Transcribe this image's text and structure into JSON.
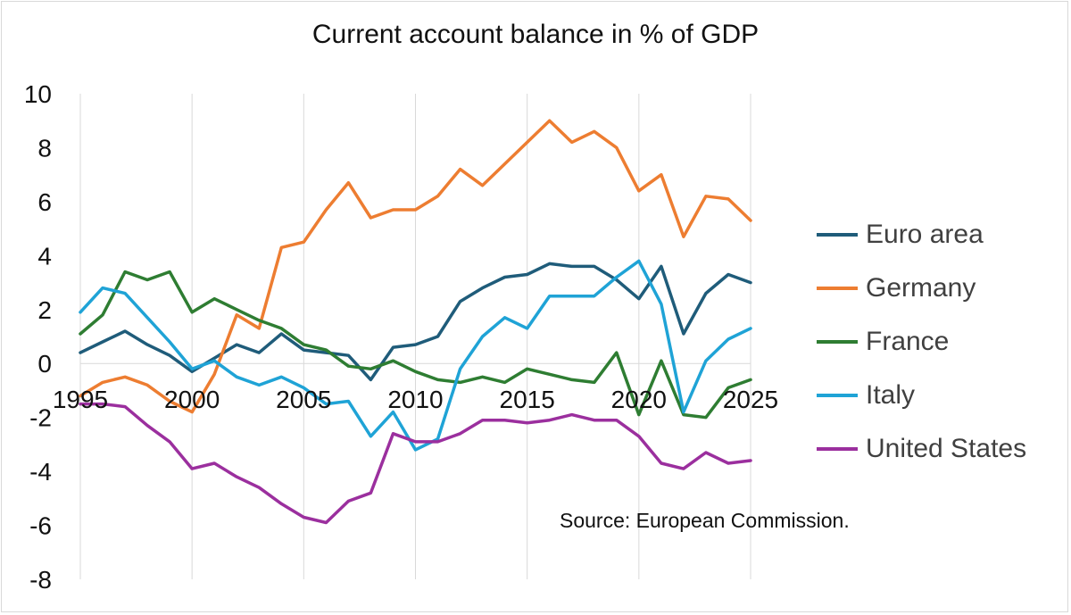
{
  "chart_data": {
    "type": "line",
    "title": "Current account balance in % of GDP",
    "xlabel": "",
    "ylabel": "",
    "ylim": [
      -8,
      10
    ],
    "xlim": [
      1995,
      2025
    ],
    "y_ticks": [
      "-8",
      "-6",
      "-4",
      "-2",
      "0",
      "2",
      "4",
      "6",
      "8",
      "10"
    ],
    "x_tick_labels": [
      "1995",
      "2000",
      "2005",
      "2010",
      "2015",
      "2020",
      "2025"
    ],
    "grid": "vertical",
    "legend_position": "right",
    "x": [
      1995,
      1996,
      1997,
      1998,
      1999,
      2000,
      2001,
      2002,
      2003,
      2004,
      2005,
      2006,
      2007,
      2008,
      2009,
      2010,
      2011,
      2012,
      2013,
      2014,
      2015,
      2016,
      2017,
      2018,
      2019,
      2020,
      2021,
      2022,
      2023,
      2024,
      2025
    ],
    "series": [
      {
        "name": "Euro area",
        "color": "#1f5c7a",
        "values": [
          0.4,
          0.8,
          1.2,
          0.7,
          0.3,
          -0.3,
          0.2,
          0.7,
          0.4,
          1.1,
          0.5,
          0.4,
          0.3,
          -0.6,
          0.6,
          0.7,
          1.0,
          2.3,
          2.8,
          3.2,
          3.3,
          3.7,
          3.6,
          3.6,
          3.1,
          2.4,
          3.6,
          1.1,
          2.6,
          3.3,
          3.0
        ]
      },
      {
        "name": "Germany",
        "color": "#ed7d31",
        "values": [
          -1.2,
          -0.7,
          -0.5,
          -0.8,
          -1.4,
          -1.8,
          -0.4,
          1.8,
          1.3,
          4.3,
          4.5,
          5.7,
          6.7,
          5.4,
          5.7,
          5.7,
          6.2,
          7.2,
          6.6,
          7.4,
          8.2,
          9.0,
          8.2,
          8.6,
          8.0,
          6.4,
          7.0,
          4.7,
          6.2,
          6.1,
          5.3
        ]
      },
      {
        "name": "France",
        "color": "#2e7d32",
        "values": [
          1.1,
          1.8,
          3.4,
          3.1,
          3.4,
          1.9,
          2.4,
          2.0,
          1.6,
          1.3,
          0.7,
          0.5,
          -0.1,
          -0.2,
          0.1,
          -0.3,
          -0.6,
          -0.7,
          -0.5,
          -0.7,
          -0.2,
          -0.4,
          -0.6,
          -0.7,
          0.4,
          -1.9,
          0.1,
          -1.9,
          -2.0,
          -0.9,
          -0.6
        ]
      },
      {
        "name": "Italy",
        "color": "#1fa3d6",
        "values": [
          1.9,
          2.8,
          2.6,
          1.7,
          0.8,
          -0.2,
          0.1,
          -0.5,
          -0.8,
          -0.5,
          -0.9,
          -1.5,
          -1.4,
          -2.7,
          -1.8,
          -3.2,
          -2.8,
          -0.2,
          1.0,
          1.7,
          1.3,
          2.5,
          2.5,
          2.5,
          3.2,
          3.8,
          2.2,
          -1.8,
          0.1,
          0.9,
          1.3
        ]
      },
      {
        "name": "United States",
        "color": "#9b2f9e",
        "values": [
          -1.5,
          -1.5,
          -1.6,
          -2.3,
          -2.9,
          -3.9,
          -3.7,
          -4.2,
          -4.6,
          -5.2,
          -5.7,
          -5.9,
          -5.1,
          -4.8,
          -2.6,
          -2.9,
          -2.9,
          -2.6,
          -2.1,
          -2.1,
          -2.2,
          -2.1,
          -1.9,
          -2.1,
          -2.1,
          -2.7,
          -3.7,
          -3.9,
          -3.3,
          -3.7,
          -3.6
        ]
      }
    ],
    "annotation": "Source: European Commission."
  }
}
